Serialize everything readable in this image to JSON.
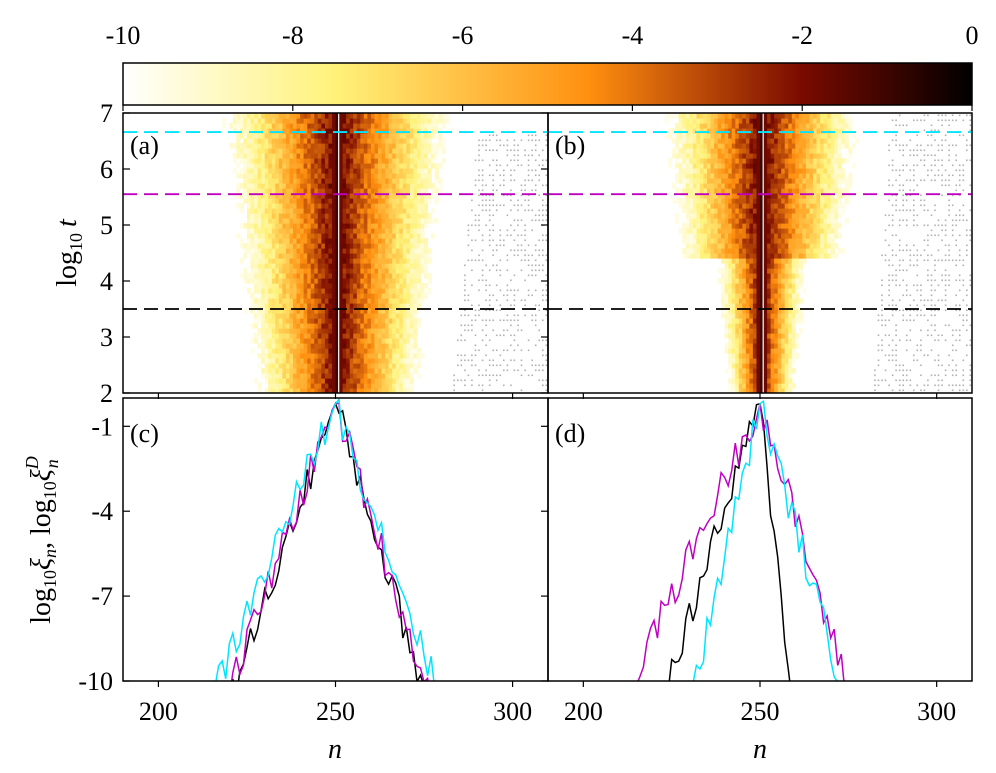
{
  "colorbar": {
    "ticks": [
      "-10",
      "-8",
      "-6",
      "-4",
      "-2",
      "0"
    ],
    "values": [
      -10,
      -8,
      -6,
      -4,
      -2,
      0
    ],
    "range": [
      -10,
      0
    ],
    "colormap": [
      "#ffffff",
      "#fff27a",
      "#ff8f0f",
      "#7a0a00",
      "#000000"
    ]
  },
  "chart_data": [
    {
      "type": "heatmap",
      "panel_label": "(a)",
      "xlim": [
        190,
        310
      ],
      "ylim": [
        2,
        7
      ],
      "ylabel_main": "log",
      "ylabel_sub": "10",
      "ylabel_var": "t",
      "y_ticks": [
        "2",
        "3",
        "4",
        "5",
        "6",
        "7"
      ],
      "y_tick_values": [
        2,
        3,
        4,
        5,
        6,
        7
      ],
      "center_site": 250,
      "core_half_width": 24,
      "hlines": [
        {
          "y": 6.66,
          "color": "#00e5ff"
        },
        {
          "y": 5.55,
          "color": "#c000c0"
        },
        {
          "y": 3.5,
          "color": "#000000"
        }
      ]
    },
    {
      "type": "heatmap",
      "panel_label": "(b)",
      "xlim": [
        190,
        310
      ],
      "ylim": [
        2,
        7
      ],
      "center_site": 250,
      "core_half_width": 10,
      "hlines": [
        {
          "y": 6.66,
          "color": "#00e5ff"
        },
        {
          "y": 5.55,
          "color": "#c000c0"
        },
        {
          "y": 3.5,
          "color": "#000000"
        }
      ]
    },
    {
      "type": "line",
      "panel_label": "(c)",
      "xlim": [
        190,
        310
      ],
      "ylim": [
        -10,
        0
      ],
      "ylabel": "log10 ξn, log10 ξDn",
      "ylabel_parts": {
        "log": "log",
        "ten": "10",
        "xi": "ξ",
        "n": "n",
        "sep": ", ",
        "D": "D"
      },
      "y_ticks": [
        "-1",
        "-4",
        "-7",
        "-10"
      ],
      "y_tick_values": [
        -1,
        -4,
        -7,
        -10
      ],
      "series": [
        {
          "name": "t3.5",
          "color": "#000000",
          "center": 250,
          "peak": -0.2,
          "slope_left": 0.26,
          "slope_right": 0.3
        },
        {
          "name": "t5.55",
          "color": "#c000c0",
          "center": 250,
          "peak": -0.2,
          "slope_left": 0.25,
          "slope_right": 0.29
        },
        {
          "name": "t6.66",
          "color": "#00e5ff",
          "center": 250,
          "peak": -0.2,
          "slope_left": 0.22,
          "slope_right": 0.26
        }
      ]
    },
    {
      "type": "line",
      "panel_label": "(d)",
      "xlim": [
        190,
        310
      ],
      "ylim": [
        -10,
        0
      ],
      "x_ticks": [
        "200",
        "250",
        "300"
      ],
      "x_tick_values": [
        200,
        250,
        300
      ],
      "xlabel": "n",
      "series": [
        {
          "name": "t3.5",
          "color": "#000000",
          "center": 250,
          "peak": -0.2,
          "slope_left": 0.28,
          "slope_right": 0.85
        },
        {
          "name": "t5.55",
          "color": "#c000c0",
          "center": 250,
          "peak": -0.2,
          "slope_left": 0.2,
          "slope_right": 0.3
        },
        {
          "name": "t6.66",
          "color": "#00e5ff",
          "center": 250,
          "peak": -0.2,
          "slope_left": 0.4,
          "slope_right": 0.32
        }
      ]
    }
  ],
  "x_axis": {
    "ticks": [
      "200",
      "250",
      "300"
    ],
    "values": [
      200,
      250,
      300
    ],
    "label": "n"
  }
}
